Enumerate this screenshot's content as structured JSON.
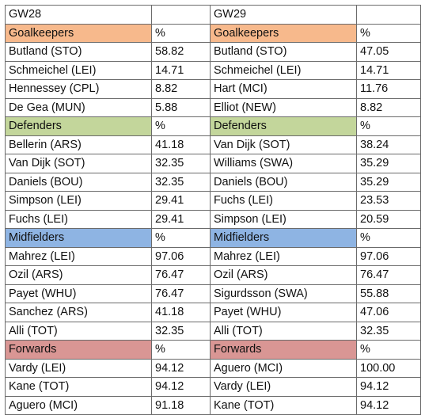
{
  "left_header": "GW28",
  "right_header": "GW29",
  "pct_label": "%",
  "sections": [
    {
      "name": "Goalkeepers",
      "color": "#f7b98c",
      "left": [
        {
          "player": "Butland (STO)",
          "pct": "58.82"
        },
        {
          "player": "Schmeichel (LEI)",
          "pct": "14.71"
        },
        {
          "player": "Hennessey (CPL)",
          "pct": "8.82"
        },
        {
          "player": "De Gea (MUN)",
          "pct": "5.88"
        }
      ],
      "right": [
        {
          "player": "Butland (STO)",
          "pct": "47.05"
        },
        {
          "player": "Schmeichel (LEI)",
          "pct": "14.71"
        },
        {
          "player": "Hart (MCI)",
          "pct": "11.76"
        },
        {
          "player": "Elliot (NEW)",
          "pct": "8.82"
        }
      ]
    },
    {
      "name": "Defenders",
      "color": "#c3d69b",
      "left": [
        {
          "player": "Bellerin (ARS)",
          "pct": "41.18"
        },
        {
          "player": "Van Dijk (SOT)",
          "pct": "32.35"
        },
        {
          "player": "Daniels (BOU)",
          "pct": "32.35"
        },
        {
          "player": "Simpson (LEI)",
          "pct": "29.41"
        },
        {
          "player": "Fuchs (LEI)",
          "pct": "29.41"
        }
      ],
      "right": [
        {
          "player": "Van Dijk (SOT)",
          "pct": "38.24"
        },
        {
          "player": "Williams (SWA)",
          "pct": "35.29"
        },
        {
          "player": "Daniels (BOU)",
          "pct": "35.29"
        },
        {
          "player": "Fuchs (LEI)",
          "pct": "23.53"
        },
        {
          "player": "Simpson (LEI)",
          "pct": "20.59"
        }
      ]
    },
    {
      "name": "Midfielders",
      "color": "#8eb4e3",
      "left": [
        {
          "player": "Mahrez (LEI)",
          "pct": "97.06"
        },
        {
          "player": "Ozil (ARS)",
          "pct": "76.47"
        },
        {
          "player": "Payet (WHU)",
          "pct": "76.47"
        },
        {
          "player": "Sanchez (ARS)",
          "pct": "41.18"
        },
        {
          "player": "Alli (TOT)",
          "pct": "32.35"
        }
      ],
      "right": [
        {
          "player": "Mahrez (LEI)",
          "pct": "97.06"
        },
        {
          "player": "Ozil (ARS)",
          "pct": "76.47"
        },
        {
          "player": "Sigurdsson (SWA)",
          "pct": "55.88"
        },
        {
          "player": "Payet (WHU)",
          "pct": "47.06"
        },
        {
          "player": "Alli (TOT)",
          "pct": "32.35"
        }
      ]
    },
    {
      "name": "Forwards",
      "color": "#d99694",
      "left": [
        {
          "player": "Vardy (LEI)",
          "pct": "94.12"
        },
        {
          "player": "Kane (TOT)",
          "pct": "94.12"
        },
        {
          "player": "Aguero (MCI)",
          "pct": "91.18"
        }
      ],
      "right": [
        {
          "player": "Aguero (MCI)",
          "pct": "100.00"
        },
        {
          "player": "Vardy (LEI)",
          "pct": "94.12"
        },
        {
          "player": "Kane (TOT)",
          "pct": "94.12"
        }
      ]
    }
  ]
}
